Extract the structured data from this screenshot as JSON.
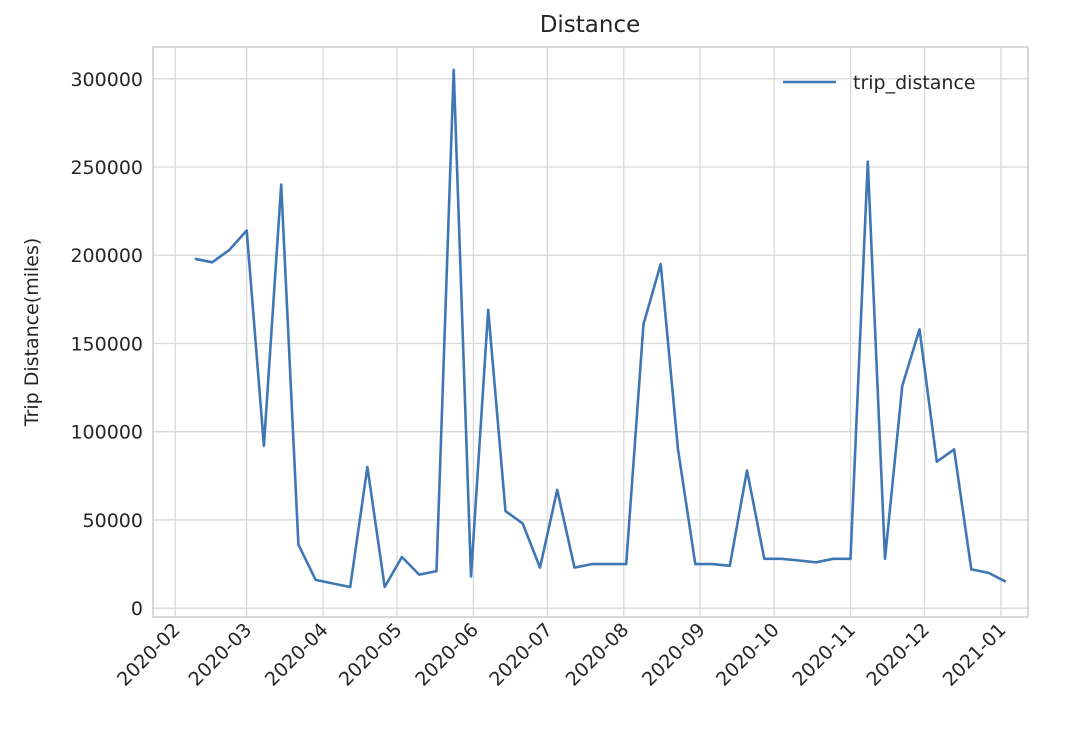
{
  "chart_data": {
    "type": "line",
    "title": "Distance",
    "xlabel": "",
    "ylabel": "Trip Distance(miles)",
    "x_tick_labels": [
      "2020-02",
      "2020-03",
      "2020-04",
      "2020-05",
      "2020-06",
      "2020-07",
      "2020-08",
      "2020-09",
      "2020-10",
      "2020-11",
      "2020-12",
      "2021-01"
    ],
    "xlim": [
      "2020-01-23",
      "2021-01-12"
    ],
    "ylim": [
      -5000,
      318000
    ],
    "y_ticks": [
      0,
      50000,
      100000,
      150000,
      200000,
      250000,
      300000
    ],
    "y_tick_labels": [
      "0",
      "50000",
      "100000",
      "150000",
      "200000",
      "250000",
      "300000"
    ],
    "grid": true,
    "legend_position": "top-right",
    "colors": {
      "line": "#3f77b4",
      "grid": "#d9d9d9",
      "frame": "#cccccc",
      "text": "#262626"
    },
    "series": [
      {
        "name": "trip_distance",
        "x": [
          "2020-02-09",
          "2020-02-16",
          "2020-02-23",
          "2020-03-01",
          "2020-03-08",
          "2020-03-15",
          "2020-03-22",
          "2020-03-29",
          "2020-04-05",
          "2020-04-12",
          "2020-04-19",
          "2020-04-26",
          "2020-05-03",
          "2020-05-10",
          "2020-05-17",
          "2020-05-24",
          "2020-05-31",
          "2020-06-07",
          "2020-06-14",
          "2020-06-21",
          "2020-06-28",
          "2020-07-05",
          "2020-07-12",
          "2020-07-19",
          "2020-07-26",
          "2020-08-02",
          "2020-08-09",
          "2020-08-16",
          "2020-08-23",
          "2020-08-30",
          "2020-09-06",
          "2020-09-13",
          "2020-09-20",
          "2020-09-27",
          "2020-10-04",
          "2020-10-11",
          "2020-10-18",
          "2020-10-25",
          "2020-11-01",
          "2020-11-08",
          "2020-11-15",
          "2020-11-22",
          "2020-11-29",
          "2020-12-06",
          "2020-12-13",
          "2020-12-20",
          "2020-12-27",
          "2021-01-03"
        ],
        "values": [
          198000,
          196000,
          203000,
          214000,
          92000,
          240000,
          36000,
          16000,
          14000,
          12000,
          80000,
          12000,
          29000,
          19000,
          21000,
          305000,
          18000,
          169000,
          55000,
          48000,
          23000,
          67000,
          23000,
          25000,
          25000,
          25000,
          161000,
          195000,
          90000,
          25000,
          25000,
          24000,
          78000,
          28000,
          28000,
          27000,
          26000,
          28000,
          28000,
          253000,
          28000,
          126000,
          158000,
          83000,
          90000,
          22000,
          20000,
          15000
        ]
      }
    ]
  }
}
